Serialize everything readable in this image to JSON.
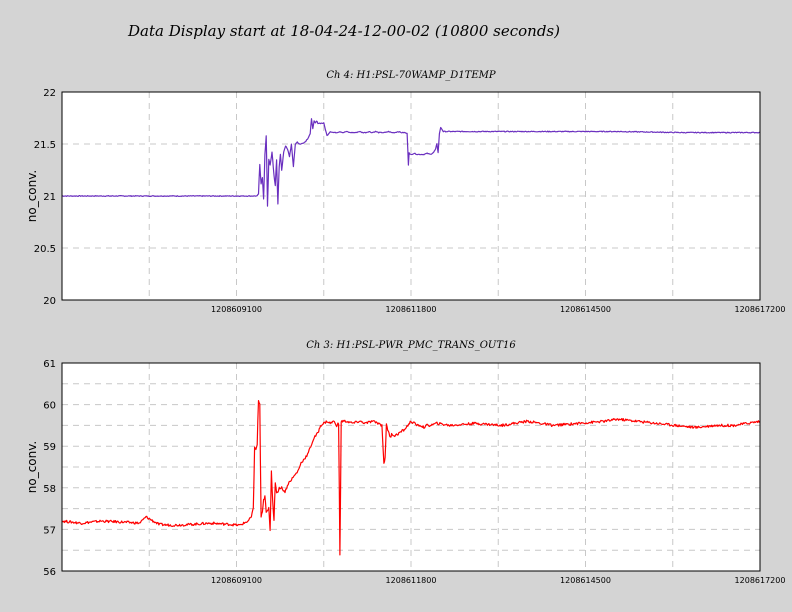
{
  "header": {
    "title": "Data Display start at 18-04-24-12-00-02 (10800 seconds)"
  },
  "chart_data": [
    {
      "type": "line",
      "title": "Ch 4: H1:PSL-70WAMP_D1TEMP",
      "ylabel": "no_conv.",
      "xlabel": "",
      "xlim": [
        1208606400,
        1208617200
      ],
      "ylim": [
        20,
        22
      ],
      "yticks": [
        20,
        20.5,
        21,
        21.5,
        22
      ],
      "ytick_labels": [
        "20",
        "20.5",
        "21",
        "21.5",
        "22"
      ],
      "xticks": [
        1208609100,
        1208611800,
        1208614500,
        1208617200
      ],
      "xtick_labels": [
        "1208609100",
        "1208611800",
        "1208614500",
        "1208617200"
      ],
      "grid": true,
      "color": "#6a2fbf",
      "series": [
        {
          "x": [
            1208606400,
            1208609420,
            1208609440,
            1208609460,
            1208609480,
            1208609500,
            1208609520,
            1208609540,
            1208609560,
            1208609580,
            1208609600,
            1208609620,
            1208609650,
            1208609680,
            1208609700,
            1208609720,
            1208609740,
            1208609760,
            1208609780,
            1208609800,
            1208609830,
            1208609860,
            1208609890,
            1208609920,
            1208609950,
            1208609980,
            1208610010,
            1208610040,
            1208610070,
            1208610100,
            1208610130,
            1208610160,
            1208610200,
            1208610240,
            1208610260,
            1208610280,
            1208610300,
            1208610320,
            1208610340,
            1208610360,
            1208610400,
            1208610450,
            1208610500,
            1208610550,
            1208610600,
            1208610650,
            1208610700,
            1208610750,
            1208610800,
            1208610850,
            1208610900,
            1208610950,
            1208611000,
            1208611050,
            1208611100,
            1208611150,
            1208611200,
            1208611250,
            1208611300,
            1208611350,
            1208611400,
            1208611450,
            1208611500,
            1208611550,
            1208611600,
            1208611650,
            1208611700,
            1208611740,
            1208611760,
            1208611770,
            1208611780,
            1208611800,
            1208611850,
            1208611900,
            1208611950,
            1208612000,
            1208612050,
            1208612100,
            1208612150,
            1208612180,
            1208612200,
            1208612220,
            1208612240,
            1208612260,
            1208612300,
            1208612400,
            1208613000,
            1208614000,
            1208615000,
            1208616000,
            1208617200
          ],
          "y": [
            21.0,
            21.0,
            21.02,
            21.3,
            21.12,
            21.18,
            20.97,
            21.4,
            21.58,
            20.9,
            21.35,
            21.3,
            21.42,
            21.2,
            21.1,
            21.35,
            20.92,
            21.28,
            21.4,
            21.25,
            21.42,
            21.48,
            21.45,
            21.38,
            21.5,
            21.28,
            21.5,
            21.52,
            21.5,
            21.5,
            21.51,
            21.52,
            21.55,
            21.6,
            21.74,
            21.65,
            21.72,
            21.7,
            21.72,
            21.7,
            21.7,
            21.7,
            21.58,
            21.62,
            21.61,
            21.61,
            21.62,
            21.61,
            21.62,
            21.61,
            21.61,
            21.61,
            21.62,
            21.61,
            21.61,
            21.62,
            21.61,
            21.62,
            21.61,
            21.61,
            21.61,
            21.62,
            21.61,
            21.61,
            21.62,
            21.61,
            21.61,
            21.6,
            21.3,
            21.42,
            21.4,
            21.4,
            21.41,
            21.4,
            21.4,
            21.4,
            21.41,
            21.4,
            21.42,
            21.45,
            21.5,
            21.42,
            21.6,
            21.66,
            21.62,
            21.62,
            21.62,
            21.62,
            21.62,
            21.61,
            21.61
          ]
        }
      ]
    },
    {
      "type": "line",
      "title": "Ch 3: H1:PSL-PWR_PMC_TRANS_OUT16",
      "ylabel": "no_conv.",
      "xlabel": "",
      "xlim": [
        1208606400,
        1208617200
      ],
      "ylim": [
        56,
        61
      ],
      "yticks": [
        56,
        57,
        58,
        59,
        60,
        61
      ],
      "ytick_labels": [
        "56",
        "57",
        "58",
        "59",
        "60",
        "61"
      ],
      "xticks": [
        1208609100,
        1208611800,
        1208614500,
        1208617200
      ],
      "xtick_labels": [
        "1208609100",
        "1208611800",
        "1208614500",
        "1208617200"
      ],
      "grid": true,
      "color": "#ff0000",
      "series": [
        {
          "x": [
            1208606400,
            1208606700,
            1208607000,
            1208607300,
            1208607600,
            1208607700,
            1208607900,
            1208608100,
            1208608400,
            1208608700,
            1208609000,
            1208609150,
            1208609280,
            1208609330,
            1208609360,
            1208609380,
            1208609400,
            1208609420,
            1208609440,
            1208609460,
            1208609480,
            1208609500,
            1208609520,
            1208609540,
            1208609560,
            1208609600,
            1208609620,
            1208609640,
            1208609660,
            1208609680,
            1208609700,
            1208609720,
            1208609740,
            1208609760,
            1208609800,
            1208609850,
            1208609900,
            1208609950,
            1208610000,
            1208610050,
            1208610100,
            1208610150,
            1208610200,
            1208610250,
            1208610300,
            1208610350,
            1208610380,
            1208610400,
            1208610450,
            1208610500,
            1208610550,
            1208610600,
            1208610650,
            1208610680,
            1208610700,
            1208610720,
            1208610750,
            1208610800,
            1208610900,
            1208611000,
            1208611100,
            1208611200,
            1208611300,
            1208611350,
            1208611380,
            1208611400,
            1208611420,
            1208611440,
            1208611460,
            1208611480,
            1208611500,
            1208611550,
            1208611600,
            1208611650,
            1208611700,
            1208611750,
            1208611800,
            1208611850,
            1208611900,
            1208611950,
            1208612000,
            1208612050,
            1208612100,
            1208612200,
            1208612400,
            1208612800,
            1208613200,
            1208613600,
            1208614000,
            1208614400,
            1208614800,
            1208615000,
            1208615300,
            1208615600,
            1208615900,
            1208616200,
            1208616500,
            1208616800,
            1208617000,
            1208617200
          ],
          "y": [
            57.2,
            57.15,
            57.2,
            57.18,
            57.15,
            57.3,
            57.12,
            57.1,
            57.12,
            57.15,
            57.12,
            57.1,
            57.2,
            57.3,
            57.5,
            59.0,
            58.9,
            59.05,
            60.1,
            60.0,
            57.3,
            57.4,
            57.7,
            57.8,
            57.4,
            57.5,
            57.0,
            58.4,
            57.7,
            57.2,
            58.1,
            57.9,
            57.9,
            58.0,
            58.0,
            57.9,
            58.1,
            58.2,
            58.3,
            58.4,
            58.6,
            58.7,
            58.8,
            59.0,
            59.2,
            59.3,
            59.4,
            59.5,
            59.55,
            59.6,
            59.55,
            59.6,
            59.5,
            59.55,
            56.4,
            59.6,
            59.6,
            59.6,
            59.55,
            59.6,
            59.55,
            59.6,
            59.55,
            59.5,
            58.6,
            58.7,
            59.55,
            59.4,
            59.3,
            59.2,
            59.3,
            59.25,
            59.3,
            59.35,
            59.4,
            59.5,
            59.6,
            59.55,
            59.5,
            59.5,
            59.45,
            59.5,
            59.5,
            59.55,
            59.5,
            59.55,
            59.5,
            59.6,
            59.5,
            59.55,
            59.6,
            59.65,
            59.6,
            59.55,
            59.5,
            59.45,
            59.5,
            59.5,
            59.55,
            59.6
          ]
        }
      ]
    }
  ]
}
